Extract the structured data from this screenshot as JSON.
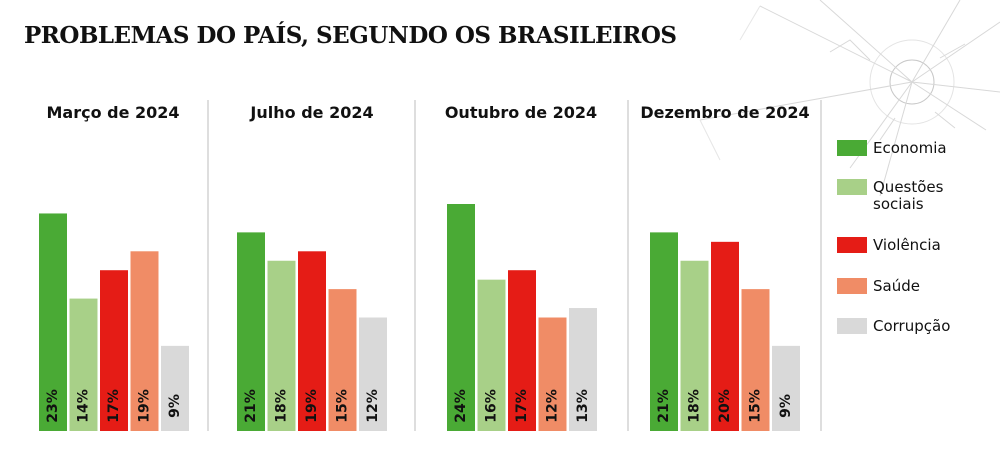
{
  "title": "PROBLEMAS DO PAÍS, SEGUNDO OS BRASILEIROS",
  "legend": [
    {
      "label": "Economia",
      "color": "#4aaa35"
    },
    {
      "label": "Questões sociais",
      "color": "#a8d088"
    },
    {
      "label": "Violência",
      "color": "#e51c16"
    },
    {
      "label": "Saúde",
      "color": "#f08c66"
    },
    {
      "label": "Corrupção",
      "color": "#d9d9d9"
    }
  ],
  "chart_data": {
    "type": "bar",
    "title": "PROBLEMAS DO PAÍS, SEGUNDO OS BRASILEIROS",
    "unit": "%",
    "ylim": [
      0,
      24
    ],
    "legend_position": "right",
    "categories": [
      "Março de 2024",
      "Julho de 2024",
      "Outubro de 2024",
      "Dezembro de 2024"
    ],
    "series": [
      {
        "name": "Economia",
        "color": "#4aaa35",
        "values": [
          23,
          21,
          24,
          21
        ]
      },
      {
        "name": "Questões sociais",
        "color": "#a8d088",
        "values": [
          14,
          18,
          16,
          18
        ]
      },
      {
        "name": "Violência",
        "color": "#e51c16",
        "values": [
          17,
          19,
          17,
          20
        ]
      },
      {
        "name": "Saúde",
        "color": "#f08c66",
        "values": [
          19,
          15,
          12,
          15
        ]
      },
      {
        "name": "Corrupção",
        "color": "#d9d9d9",
        "values": [
          9,
          12,
          13,
          9
        ]
      }
    ]
  }
}
